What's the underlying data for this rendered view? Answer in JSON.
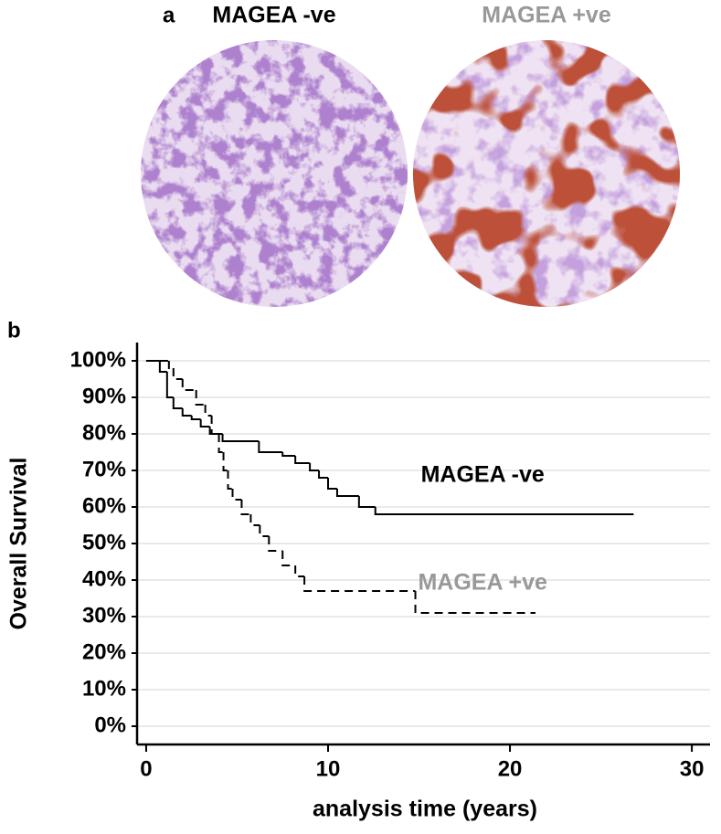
{
  "panel_a": {
    "label": "a",
    "images": [
      {
        "label": "MAGEA -ve",
        "color": "#000000"
      },
      {
        "label": "MAGEA +ve",
        "color": "#999999"
      }
    ]
  },
  "chart_data": {
    "type": "step",
    "panel_label": "b",
    "ylabel": "Overall Survival",
    "xlabel": "analysis time (years)",
    "xlim": [
      -0.5,
      31
    ],
    "ylim": [
      -5,
      105
    ],
    "xticks": [
      0,
      10,
      20,
      30
    ],
    "yticks": [
      {
        "value": 0,
        "label": "0%"
      },
      {
        "value": 10,
        "label": "10%"
      },
      {
        "value": 20,
        "label": "20%"
      },
      {
        "value": 30,
        "label": "30%"
      },
      {
        "value": 40,
        "label": "40%"
      },
      {
        "value": 50,
        "label": "50%"
      },
      {
        "value": 60,
        "label": "60%"
      },
      {
        "value": 70,
        "label": "70%"
      },
      {
        "value": 80,
        "label": "80%"
      },
      {
        "value": 90,
        "label": "90%"
      },
      {
        "value": 100,
        "label": "100%"
      }
    ],
    "grid": true,
    "series": [
      {
        "name": "MAGEA -ve",
        "color": "#000000",
        "label_color": "#000000",
        "linestyle": "solid",
        "label_at": [
          18.5,
          68.5
        ],
        "x": [
          0,
          0.75,
          1.15,
          1.5,
          2,
          2.5,
          3,
          3.5,
          4.2,
          6.2,
          7.5,
          8.2,
          9,
          9.5,
          10,
          10.5,
          11.7,
          12.6,
          26.8
        ],
        "values": [
          100,
          97,
          90,
          87,
          85,
          84,
          82,
          80,
          78,
          75,
          74,
          72,
          70,
          68,
          65,
          63,
          60,
          58,
          58
        ]
      },
      {
        "name": "MAGEA +ve",
        "color": "#000000",
        "label_color": "#999999",
        "linestyle": "dashed",
        "label_at": [
          18.5,
          39
        ],
        "x": [
          0,
          1.25,
          1.5,
          2,
          2.75,
          3.25,
          3.6,
          4,
          4.25,
          4.5,
          4.75,
          5.25,
          5.75,
          6.25,
          6.75,
          7.5,
          8.2,
          8.7,
          14.8,
          21.4
        ],
        "values": [
          100,
          98,
          95,
          92,
          88,
          85,
          80,
          75,
          70,
          65,
          62,
          58,
          55,
          52,
          48,
          44,
          41,
          37,
          31,
          31
        ]
      }
    ]
  }
}
